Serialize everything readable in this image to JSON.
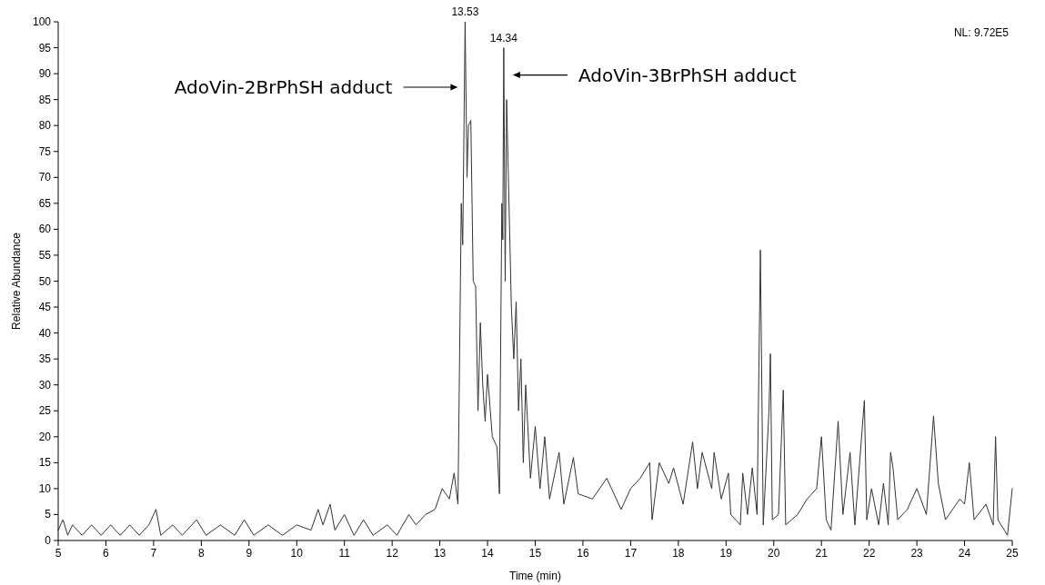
{
  "chart_data": {
    "type": "line",
    "xlabel": "Time (min)",
    "ylabel": "Relative Abundance",
    "xlim": [
      5,
      25
    ],
    "xticks": [
      5,
      6,
      7,
      8,
      9,
      10,
      11,
      12,
      13,
      14,
      15,
      16,
      17,
      18,
      19,
      20,
      21,
      22,
      23,
      24,
      25
    ],
    "ylim": [
      0,
      100
    ],
    "yticks": [
      0,
      5,
      10,
      15,
      20,
      25,
      30,
      35,
      40,
      45,
      50,
      55,
      60,
      65,
      70,
      75,
      80,
      85,
      90,
      95,
      100
    ],
    "grid": false,
    "marker": "none",
    "line_style": "solid",
    "series": [
      {
        "color": "#333333",
        "x": [
          5.0,
          5.1,
          5.2,
          5.3,
          5.5,
          5.7,
          5.9,
          6.1,
          6.3,
          6.5,
          6.7,
          6.9,
          7.05,
          7.15,
          7.4,
          7.6,
          7.9,
          8.1,
          8.4,
          8.7,
          8.9,
          9.1,
          9.4,
          9.7,
          10.0,
          10.3,
          10.45,
          10.55,
          10.7,
          10.8,
          11.0,
          11.2,
          11.4,
          11.6,
          11.9,
          12.1,
          12.35,
          12.5,
          12.7,
          12.9,
          13.05,
          13.2,
          13.3,
          13.38,
          13.45,
          13.48,
          13.53,
          13.57,
          13.6,
          13.65,
          13.7,
          13.75,
          13.8,
          13.85,
          13.9,
          13.95,
          14.0,
          14.05,
          14.1,
          14.2,
          14.25,
          14.3,
          14.32,
          14.34,
          14.37,
          14.4,
          14.45,
          14.5,
          14.55,
          14.6,
          14.65,
          14.7,
          14.75,
          14.8,
          14.9,
          15.0,
          15.1,
          15.2,
          15.3,
          15.5,
          15.6,
          15.8,
          15.9,
          16.2,
          16.5,
          16.8,
          17.0,
          17.2,
          17.4,
          17.45,
          17.6,
          17.8,
          17.9,
          18.1,
          18.3,
          18.4,
          18.5,
          18.7,
          18.75,
          18.9,
          19.05,
          19.1,
          19.3,
          19.35,
          19.45,
          19.55,
          19.65,
          19.72,
          19.78,
          19.9,
          19.93,
          19.97,
          20.1,
          20.2,
          20.25,
          20.5,
          20.7,
          20.9,
          21.0,
          21.1,
          21.2,
          21.35,
          21.45,
          21.6,
          21.7,
          21.9,
          21.95,
          22.05,
          22.2,
          22.3,
          22.4,
          22.45,
          22.5,
          22.6,
          22.8,
          23.0,
          23.2,
          23.35,
          23.45,
          23.6,
          23.9,
          24.0,
          24.1,
          24.2,
          24.45,
          24.6,
          24.65,
          24.7,
          24.9,
          25.0
        ],
        "values": [
          2,
          4,
          1,
          3,
          1,
          3,
          1,
          3,
          1,
          3,
          1,
          3,
          6,
          1,
          3,
          1,
          4,
          1,
          3,
          1,
          4,
          1,
          3,
          1,
          3,
          2,
          6,
          3,
          7,
          2,
          5,
          1,
          4,
          1,
          3,
          1,
          5,
          3,
          5,
          6,
          10,
          8,
          13,
          7,
          65,
          57,
          100,
          70,
          80,
          81,
          50,
          49,
          25,
          42,
          30,
          23,
          32,
          26,
          20,
          18,
          9,
          65,
          58,
          95,
          50,
          85,
          65,
          45,
          35,
          46,
          25,
          35,
          15,
          30,
          12,
          22,
          10,
          20,
          8,
          17,
          7,
          16,
          9,
          8,
          12,
          6,
          10,
          12,
          15,
          4,
          15,
          11,
          14,
          7,
          19,
          10,
          17,
          10,
          17,
          8,
          13,
          5,
          3,
          13,
          5,
          14,
          5,
          56,
          3,
          25,
          36,
          4,
          5,
          29,
          3,
          5,
          8,
          10,
          20,
          4,
          2,
          23,
          5,
          17,
          3,
          27,
          4,
          10,
          3,
          11,
          3,
          17,
          14,
          4,
          6,
          10,
          5,
          24,
          11,
          4,
          8,
          7,
          15,
          4,
          7,
          3,
          20,
          4,
          1,
          10
        ]
      }
    ],
    "annotations": [
      {
        "text": "13.53",
        "x": 13.53,
        "y": 100
      },
      {
        "text": "14.34",
        "x": 14.34,
        "y": 95
      },
      "AdoVin-2BrPhSH adduct",
      "AdoVin-3BrPhSH adduct",
      "NL: 9.72E5"
    ]
  }
}
